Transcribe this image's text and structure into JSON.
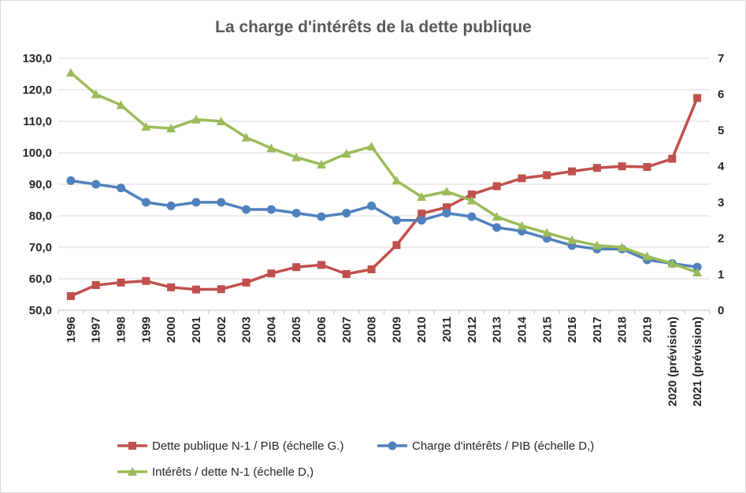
{
  "chart_data": {
    "type": "line",
    "title": "La charge d'intérêts de la dette publique",
    "categories": [
      "1996",
      "1997",
      "1998",
      "1999",
      "2000",
      "2001",
      "2002",
      "2003",
      "2004",
      "2005",
      "2006",
      "2007",
      "2008",
      "2009",
      "2010",
      "2011",
      "2012",
      "2013",
      "2014",
      "2015",
      "2016",
      "2017",
      "2018",
      "2019",
      "2020 (prévision)",
      "2021 (prévision)"
    ],
    "y_left": {
      "min": 50,
      "max": 130,
      "step": 10,
      "ticks": [
        "50,0",
        "60,0",
        "70,0",
        "80,0",
        "90,0",
        "100,0",
        "110,0",
        "120,0",
        "130,0"
      ]
    },
    "y_right": {
      "min": 0,
      "max": 7,
      "step": 1,
      "ticks": [
        "0",
        "1",
        "2",
        "3",
        "4",
        "5",
        "6",
        "7"
      ]
    },
    "grid": true,
    "legend_position": "bottom",
    "series": [
      {
        "name": "Dette publique N-1 / PIB (échelle G.)",
        "axis": "left",
        "color": "#c0504d",
        "marker": "square",
        "values": [
          54.5,
          58.0,
          58.8,
          59.3,
          57.3,
          56.6,
          56.7,
          58.8,
          61.7,
          63.7,
          64.4,
          61.5,
          63.0,
          70.7,
          80.7,
          82.7,
          86.8,
          89.4,
          91.9,
          92.9,
          94.1,
          95.2,
          95.7,
          95.5,
          98.1,
          117.4
        ]
      },
      {
        "name": "Charge d'intérêts / PIB (échelle D,)",
        "axis": "right",
        "color": "#4f81bd",
        "marker": "circle",
        "values": [
          3.6,
          3.5,
          3.4,
          3.0,
          2.9,
          3.0,
          3.0,
          2.8,
          2.8,
          2.7,
          2.6,
          2.7,
          2.9,
          2.5,
          2.5,
          2.7,
          2.6,
          2.3,
          2.2,
          2.0,
          1.8,
          1.7,
          1.7,
          1.4,
          1.3,
          1.2
        ]
      },
      {
        "name": "Intérêts / dette N-1 (échelle D,)",
        "axis": "right",
        "color": "#9bbb59",
        "marker": "triangle",
        "values": [
          6.6,
          6.0,
          5.7,
          5.1,
          5.05,
          5.3,
          5.25,
          4.8,
          4.5,
          4.25,
          4.05,
          4.35,
          4.55,
          3.6,
          3.15,
          3.3,
          3.05,
          2.6,
          2.35,
          2.15,
          1.95,
          1.8,
          1.75,
          1.5,
          1.3,
          1.05
        ]
      }
    ]
  }
}
